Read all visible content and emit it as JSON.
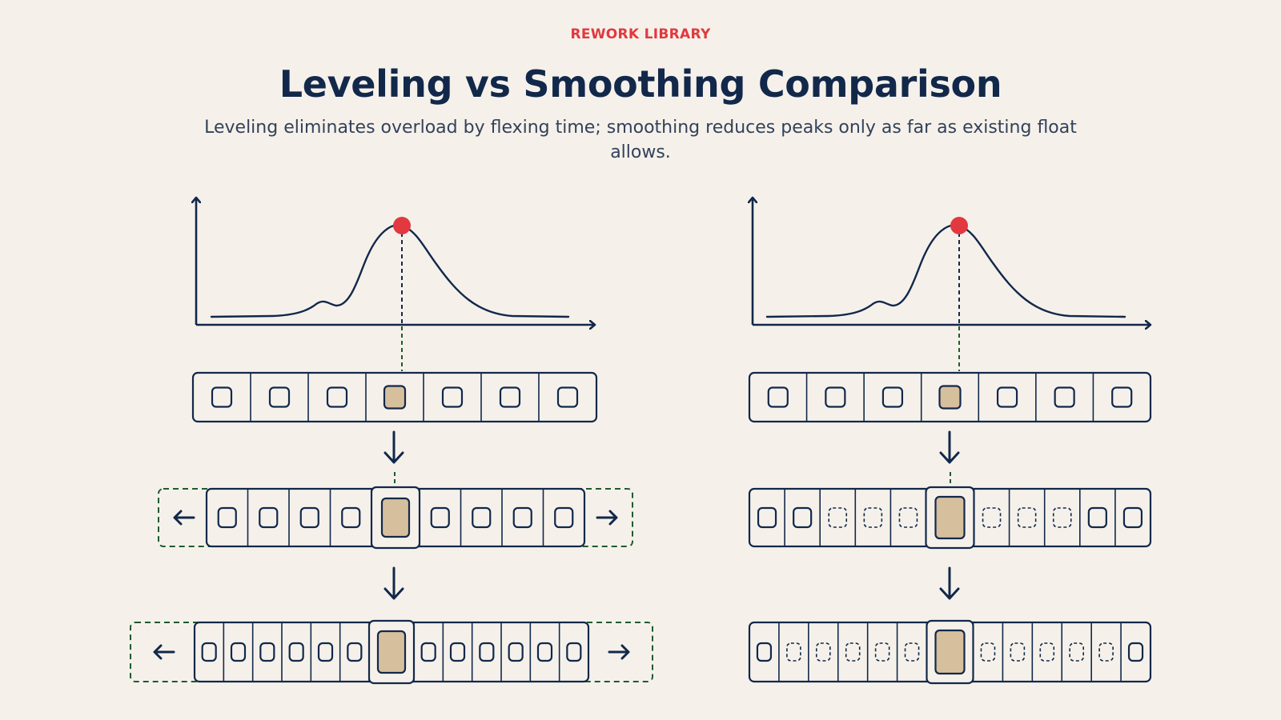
{
  "header": {
    "eyebrow": "REWORK LIBRARY",
    "title": "Leveling vs Smoothing Comparison",
    "subtitle": "Leveling eliminates overload by flexing time; smoothing reduces peaks only as far as existing float allows."
  },
  "colors": {
    "background": "#f5f1ea",
    "ink": "#12284b",
    "accent_red": "#e2383f",
    "task_fill": "#d6bf9c",
    "guide_green": "#1f5a2e"
  },
  "panels": [
    {
      "id": "leveling",
      "stage2": {
        "extends_left": true,
        "extends_right": true,
        "cells": 9,
        "peak_index": 4,
        "dashed_cells": []
      },
      "stage3": {
        "extends_left": true,
        "extends_right": true,
        "cells": 13,
        "peak_index": 6,
        "dashed_cells": []
      }
    },
    {
      "id": "smoothing",
      "stage2": {
        "extends_left": false,
        "extends_right": false,
        "cells": 11,
        "peak_index": 5,
        "dashed_cells": [
          2,
          3,
          4,
          6,
          7,
          8
        ]
      },
      "stage3": {
        "extends_left": false,
        "extends_right": false,
        "cells": 13,
        "peak_index": 6,
        "dashed_cells": [
          1,
          2,
          3,
          4,
          5,
          7,
          8,
          9,
          10,
          11
        ]
      }
    }
  ],
  "stage1": {
    "cells": 7,
    "peak_index": 3
  }
}
